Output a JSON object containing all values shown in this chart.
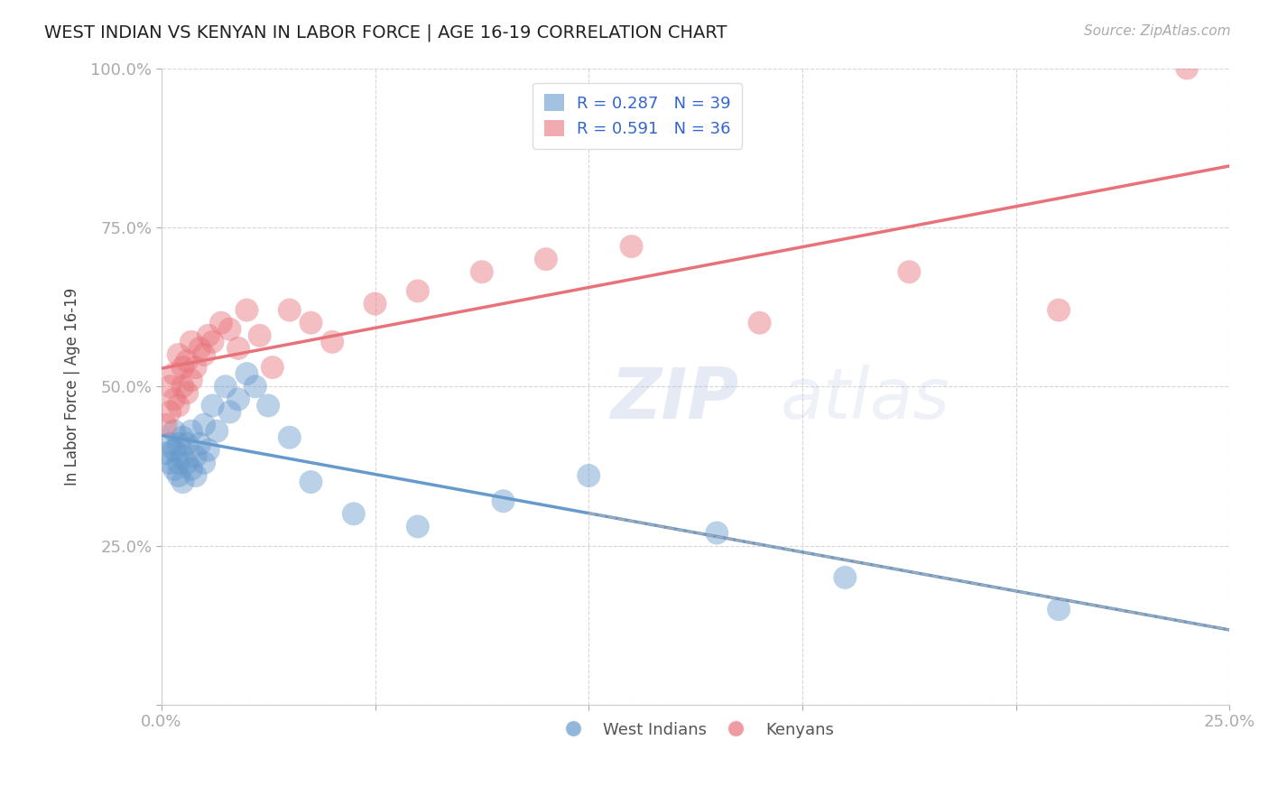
{
  "title": "WEST INDIAN VS KENYAN IN LABOR FORCE | AGE 16-19 CORRELATION CHART",
  "source_text": "Source: ZipAtlas.com",
  "ylabel": "In Labor Force | Age 16-19",
  "xlim": [
    0.0,
    0.25
  ],
  "ylim": [
    0.0,
    1.0
  ],
  "xticks": [
    0.0,
    0.05,
    0.1,
    0.15,
    0.2,
    0.25
  ],
  "yticks": [
    0.0,
    0.25,
    0.5,
    0.75,
    1.0
  ],
  "xtick_labels": [
    "0.0%",
    "",
    "",
    "",
    "",
    "25.0%"
  ],
  "ytick_labels": [
    "",
    "25.0%",
    "50.0%",
    "75.0%",
    "100.0%"
  ],
  "west_indian_color": "#6699CC",
  "kenyan_color": "#E8727A",
  "west_indian_R": 0.287,
  "west_indian_N": 39,
  "kenyan_R": 0.591,
  "kenyan_N": 36,
  "legend_text_color": "#3366CC",
  "background_color": "#FFFFFF",
  "grid_color": "#CCCCCC",
  "west_indian_x": [
    0.001,
    0.002,
    0.002,
    0.003,
    0.003,
    0.003,
    0.004,
    0.004,
    0.004,
    0.005,
    0.005,
    0.005,
    0.006,
    0.006,
    0.007,
    0.007,
    0.008,
    0.008,
    0.009,
    0.01,
    0.01,
    0.011,
    0.012,
    0.013,
    0.015,
    0.016,
    0.018,
    0.02,
    0.022,
    0.025,
    0.03,
    0.035,
    0.045,
    0.06,
    0.08,
    0.1,
    0.13,
    0.16,
    0.21
  ],
  "west_indian_y": [
    0.395,
    0.38,
    0.41,
    0.37,
    0.4,
    0.43,
    0.38,
    0.41,
    0.36,
    0.39,
    0.42,
    0.35,
    0.38,
    0.41,
    0.37,
    0.43,
    0.39,
    0.36,
    0.41,
    0.38,
    0.44,
    0.4,
    0.47,
    0.43,
    0.5,
    0.46,
    0.48,
    0.52,
    0.5,
    0.47,
    0.42,
    0.35,
    0.3,
    0.28,
    0.32,
    0.36,
    0.27,
    0.2,
    0.15
  ],
  "kenyan_x": [
    0.001,
    0.002,
    0.002,
    0.003,
    0.003,
    0.004,
    0.004,
    0.005,
    0.005,
    0.006,
    0.006,
    0.007,
    0.007,
    0.008,
    0.009,
    0.01,
    0.011,
    0.012,
    0.014,
    0.016,
    0.018,
    0.02,
    0.023,
    0.026,
    0.03,
    0.035,
    0.04,
    0.05,
    0.06,
    0.075,
    0.09,
    0.11,
    0.14,
    0.175,
    0.21,
    0.24
  ],
  "kenyan_y": [
    0.44,
    0.46,
    0.5,
    0.48,
    0.52,
    0.47,
    0.55,
    0.5,
    0.53,
    0.49,
    0.54,
    0.51,
    0.57,
    0.53,
    0.56,
    0.55,
    0.58,
    0.57,
    0.6,
    0.59,
    0.56,
    0.62,
    0.58,
    0.53,
    0.62,
    0.6,
    0.57,
    0.63,
    0.65,
    0.68,
    0.7,
    0.72,
    0.6,
    0.68,
    0.62,
    1.0
  ]
}
